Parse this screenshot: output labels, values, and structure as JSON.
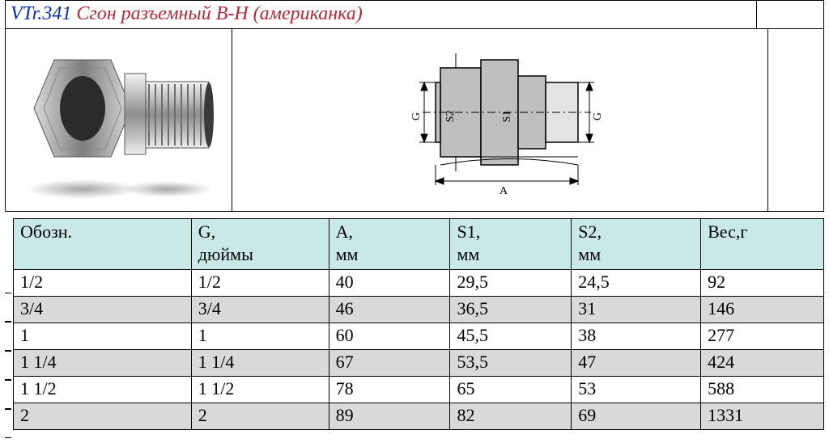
{
  "title": {
    "code": "VTr.341",
    "name": "Сгон разъемный В-Н (американка)"
  },
  "colors": {
    "code": "#0a2db0",
    "name": "#b02a37",
    "header_bg": "#c9e8e8",
    "row_shade": "#d9d9d9",
    "grid": "#000000",
    "page_bg": "#ffffff"
  },
  "drawing_labels": {
    "G": "G",
    "S1": "S1",
    "S2": "S2",
    "A": "A"
  },
  "spec_table": {
    "columns": [
      {
        "line1": "Обозн.",
        "line2": ""
      },
      {
        "line1": "G,",
        "line2": "дюймы"
      },
      {
        "line1": "A,",
        "line2": "мм"
      },
      {
        "line1": "S1,",
        "line2": "мм"
      },
      {
        "line1": "S2,",
        "line2": "мм"
      },
      {
        "line1": "Вес,г",
        "line2": ""
      }
    ],
    "rows": [
      {
        "cells": [
          "1/2",
          "1/2",
          "40",
          "29,5",
          "24,5",
          "92"
        ],
        "shaded": false
      },
      {
        "cells": [
          "3/4",
          "3/4",
          "46",
          "36,5",
          "31",
          "146"
        ],
        "shaded": true
      },
      {
        "cells": [
          "1",
          "1",
          "60",
          "45,5",
          "38",
          "277"
        ],
        "shaded": false
      },
      {
        "cells": [
          "1 1/4",
          "1 1/4",
          "67",
          "53,5",
          "47",
          "424"
        ],
        "shaded": true
      },
      {
        "cells": [
          "1 1/2",
          "1 1/2",
          "78",
          "65",
          "53",
          "588"
        ],
        "shaded": false
      },
      {
        "cells": [
          "2",
          "2",
          "89",
          "82",
          "69",
          "1331"
        ],
        "shaded": true
      }
    ]
  }
}
